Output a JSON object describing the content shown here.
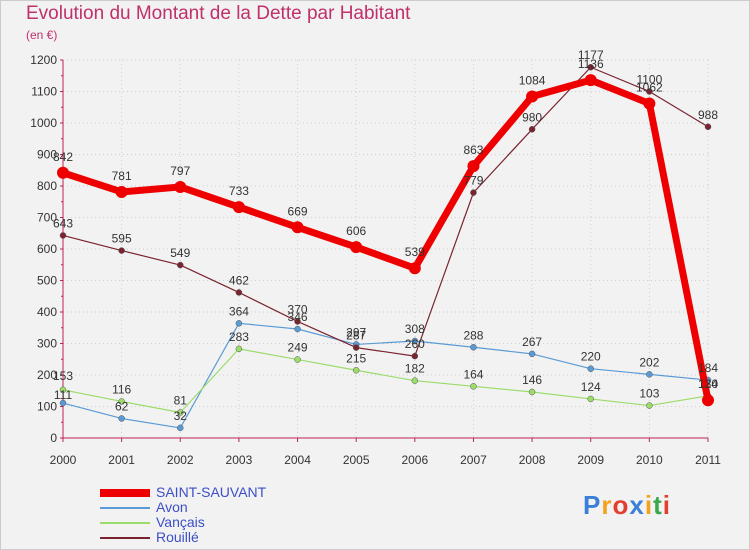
{
  "title": "Evolution du Montant de la Dette par Habitant",
  "unit_label": "(en €)",
  "brand": {
    "letters": [
      "P",
      "r",
      "o",
      "x",
      "i",
      "t",
      "i"
    ],
    "colors": [
      "#3a7fd8",
      "#f4a21c",
      "#e23f2e",
      "#3a7fd8",
      "#f4a21c",
      "#3aa84a",
      "#e23f2e"
    ]
  },
  "chart_data": {
    "type": "line",
    "x": [
      "2000",
      "2001",
      "2002",
      "2003",
      "2004",
      "2005",
      "2006",
      "2007",
      "2008",
      "2009",
      "2010",
      "2011"
    ],
    "ylim": [
      0,
      1200
    ],
    "yticks": [
      0,
      100,
      200,
      300,
      400,
      500,
      600,
      700,
      800,
      900,
      1000,
      1100,
      1200
    ],
    "grid": true,
    "legend_position": "bottom-left",
    "series": [
      {
        "name": "SAINT-SAUVANT",
        "color": "#ee0000",
        "values": [
          842,
          781,
          797,
          733,
          669,
          606,
          539,
          863,
          1084,
          1136,
          1062,
          120
        ],
        "labels": [
          "842",
          "781",
          "797",
          "733",
          "669",
          "606",
          "539",
          "863",
          "1084",
          "1136",
          "1062",
          "120"
        ]
      },
      {
        "name": "Avon",
        "color": "#5b9bd5",
        "values": [
          111,
          62,
          32,
          364,
          346,
          297,
          308,
          288,
          267,
          220,
          202,
          184
        ],
        "labels": [
          "111",
          "62",
          "32",
          "364",
          "346",
          "297",
          "308",
          "288",
          "267",
          "220",
          "202",
          "184"
        ]
      },
      {
        "name": "Vançais",
        "color": "#9bdc6a",
        "values": [
          153,
          116,
          81,
          283,
          249,
          215,
          182,
          164,
          146,
          124,
          103,
          134
        ],
        "labels": [
          "153",
          "116",
          "81",
          "283",
          "249",
          "215",
          "182",
          "164",
          "146",
          "124",
          "103",
          "134"
        ]
      },
      {
        "name": "Rouillé",
        "color": "#7a2430",
        "values": [
          643,
          595,
          549,
          462,
          370,
          287,
          260,
          779,
          980,
          1177,
          1100,
          988
        ],
        "labels": [
          "643",
          "595",
          "549",
          "462",
          "370",
          "287",
          "260",
          "779",
          "980",
          "1177",
          "1100",
          "988"
        ]
      }
    ]
  }
}
